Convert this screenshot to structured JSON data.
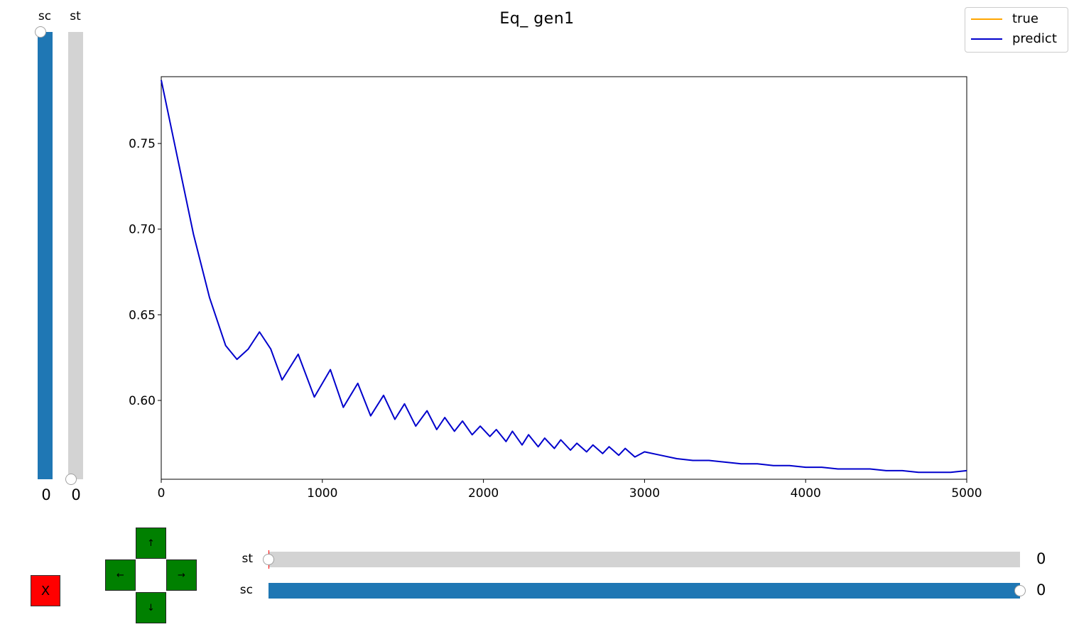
{
  "chart_data": {
    "type": "line",
    "title": "Eq_ gen1",
    "xlabel": "",
    "ylabel": "",
    "xlim": [
      0,
      5000
    ],
    "ylim": [
      0.554,
      0.789
    ],
    "xticks": [
      0,
      1000,
      2000,
      3000,
      4000,
      5000
    ],
    "yticks": [
      0.6,
      0.65,
      0.7,
      0.75
    ],
    "xtick_labels": [
      "0",
      "1000",
      "2000",
      "3000",
      "4000",
      "5000"
    ],
    "ytick_labels": [
      "0.60",
      "0.65",
      "0.70",
      "0.75"
    ],
    "grid": false,
    "legend_position": "top-right",
    "series": [
      {
        "name": "true",
        "color": "#ffa500",
        "x": [],
        "y": []
      },
      {
        "name": "predict",
        "color": "#0000cc",
        "x": [
          0,
          100,
          200,
          300,
          400,
          470,
          540,
          610,
          680,
          750,
          850,
          950,
          1050,
          1130,
          1220,
          1300,
          1380,
          1450,
          1510,
          1580,
          1650,
          1710,
          1760,
          1820,
          1870,
          1930,
          1980,
          2040,
          2080,
          2140,
          2180,
          2240,
          2280,
          2340,
          2380,
          2440,
          2480,
          2540,
          2580,
          2640,
          2680,
          2740,
          2780,
          2840,
          2880,
          2940,
          3000,
          3100,
          3200,
          3300,
          3400,
          3500,
          3600,
          3700,
          3800,
          3900,
          4000,
          4100,
          4200,
          4300,
          4400,
          4500,
          4600,
          4700,
          4800,
          4900,
          5000
        ],
        "y": [
          0.787,
          0.742,
          0.697,
          0.66,
          0.632,
          0.624,
          0.63,
          0.64,
          0.63,
          0.612,
          0.627,
          0.602,
          0.618,
          0.596,
          0.61,
          0.591,
          0.603,
          0.589,
          0.598,
          0.585,
          0.594,
          0.583,
          0.59,
          0.582,
          0.588,
          0.58,
          0.585,
          0.579,
          0.583,
          0.576,
          0.582,
          0.574,
          0.58,
          0.573,
          0.578,
          0.572,
          0.577,
          0.571,
          0.575,
          0.57,
          0.574,
          0.569,
          0.573,
          0.568,
          0.572,
          0.567,
          0.57,
          0.568,
          0.566,
          0.565,
          0.565,
          0.564,
          0.563,
          0.563,
          0.562,
          0.562,
          0.561,
          0.561,
          0.56,
          0.56,
          0.56,
          0.559,
          0.559,
          0.558,
          0.558,
          0.558,
          0.559
        ]
      }
    ]
  },
  "left_sliders": [
    {
      "label": "sc",
      "value": "0",
      "fill": 1.0
    },
    {
      "label": "st",
      "value": "0",
      "fill": 0.0
    }
  ],
  "bottom_sliders": [
    {
      "label": "st",
      "value": "0",
      "fill": 0.0
    },
    {
      "label": "sc",
      "value": "0",
      "fill": 1.0
    }
  ],
  "close_button": {
    "label": "X",
    "color": "#ff0000"
  },
  "arrow_pad": {
    "color": "#008000",
    "up": "↑",
    "left": "←",
    "right": "→",
    "down": "↓"
  }
}
